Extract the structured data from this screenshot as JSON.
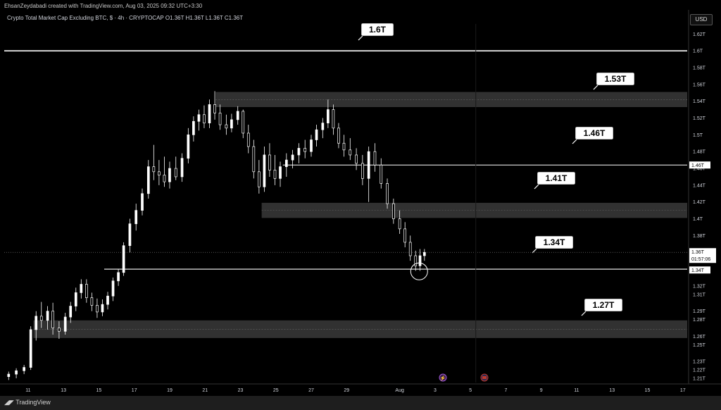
{
  "header": {
    "credit": "EhsanZeydabadi created with TradingView.com, Aug 03, 2025 09:32 UTC+3:30",
    "symbol_line": "Crypto Total Market Cap Excluding BTC, $ · 4h · CRYPTOCAP  O1.36T  H1.36T  L1.36T  C1.36T",
    "currency": "USD"
  },
  "footer": {
    "brand": "TradingView"
  },
  "colors": {
    "background": "#000000",
    "line": "#ffffff",
    "zone": "#3a3a3a",
    "axis_text": "#d1d4dc"
  },
  "chart_data": {
    "type": "candlestick",
    "title": "Crypto Total Market Cap Excluding BTC",
    "timeframe": "4h",
    "y_unit": "T",
    "ylim": [
      1.205,
      1.632
    ],
    "y_ticks": [
      "1.62T",
      "1.6T",
      "1.58T",
      "1.56T",
      "1.54T",
      "1.52T",
      "1.5T",
      "1.48T",
      "1.46T",
      "1.44T",
      "1.42T",
      "1.4T",
      "1.38T",
      "1.36T",
      "1.34T",
      "1.32T",
      "1.31T",
      "1.29T",
      "1.28T",
      "1.26T",
      "1.25T",
      "1.23T",
      "1.22T",
      "1.21T"
    ],
    "y_tick_values": [
      1.62,
      1.6,
      1.58,
      1.56,
      1.54,
      1.52,
      1.5,
      1.48,
      1.46,
      1.44,
      1.42,
      1.4,
      1.38,
      1.36,
      1.34,
      1.32,
      1.31,
      1.29,
      1.28,
      1.26,
      1.25,
      1.23,
      1.22,
      1.21
    ],
    "x_ticks": [
      "11",
      "13",
      "15",
      "17",
      "19",
      "21",
      "23",
      "25",
      "27",
      "29",
      "Aug",
      "3",
      "5",
      "7",
      "9",
      "11",
      "13",
      "15",
      "17"
    ],
    "x_tick_days": [
      11,
      13,
      15,
      17,
      19,
      21,
      23,
      25,
      27,
      29,
      32,
      34,
      36,
      38,
      40,
      42,
      44,
      46,
      48
    ],
    "x_range_days": [
      9.65,
      48.25
    ],
    "ohlc": [
      [
        9.9,
        1.212,
        1.218,
        1.208,
        1.215
      ],
      [
        10.33,
        1.215,
        1.222,
        1.21,
        1.219
      ],
      [
        10.77,
        1.219,
        1.226,
        1.215,
        1.223
      ],
      [
        11.15,
        1.223,
        1.272,
        1.22,
        1.268
      ],
      [
        11.45,
        1.268,
        1.29,
        1.255,
        1.284
      ],
      [
        11.75,
        1.284,
        1.301,
        1.27,
        1.279
      ],
      [
        12.1,
        1.279,
        1.296,
        1.268,
        1.29
      ],
      [
        12.4,
        1.29,
        1.3,
        1.262,
        1.27
      ],
      [
        12.75,
        1.27,
        1.278,
        1.257,
        1.266
      ],
      [
        13.1,
        1.266,
        1.288,
        1.262,
        1.283
      ],
      [
        13.4,
        1.283,
        1.301,
        1.276,
        1.296
      ],
      [
        13.7,
        1.296,
        1.318,
        1.29,
        1.312
      ],
      [
        14.0,
        1.312,
        1.328,
        1.305,
        1.322
      ],
      [
        14.3,
        1.322,
        1.328,
        1.3,
        1.306
      ],
      [
        14.6,
        1.306,
        1.312,
        1.29,
        1.297
      ],
      [
        14.9,
        1.297,
        1.305,
        1.282,
        1.289
      ],
      [
        15.2,
        1.289,
        1.304,
        1.284,
        1.298
      ],
      [
        15.5,
        1.298,
        1.313,
        1.292,
        1.308
      ],
      [
        15.8,
        1.308,
        1.33,
        1.302,
        1.326
      ],
      [
        16.1,
        1.326,
        1.34,
        1.32,
        1.336
      ],
      [
        16.4,
        1.336,
        1.372,
        1.332,
        1.368
      ],
      [
        16.75,
        1.368,
        1.4,
        1.36,
        1.394
      ],
      [
        17.1,
        1.394,
        1.418,
        1.386,
        1.41
      ],
      [
        17.45,
        1.41,
        1.436,
        1.404,
        1.43
      ],
      [
        17.8,
        1.43,
        1.47,
        1.424,
        1.462
      ],
      [
        18.1,
        1.462,
        1.488,
        1.446,
        1.456
      ],
      [
        18.4,
        1.456,
        1.47,
        1.44,
        1.452
      ],
      [
        18.7,
        1.452,
        1.474,
        1.438,
        1.444
      ],
      [
        19.0,
        1.444,
        1.468,
        1.436,
        1.46
      ],
      [
        19.35,
        1.46,
        1.474,
        1.446,
        1.45
      ],
      [
        19.7,
        1.45,
        1.478,
        1.444,
        1.472
      ],
      [
        20.05,
        1.472,
        1.508,
        1.466,
        1.5
      ],
      [
        20.35,
        1.5,
        1.522,
        1.492,
        1.516
      ],
      [
        20.65,
        1.516,
        1.53,
        1.505,
        1.524
      ],
      [
        20.95,
        1.524,
        1.535,
        1.508,
        1.514
      ],
      [
        21.25,
        1.514,
        1.542,
        1.508,
        1.536
      ],
      [
        21.55,
        1.536,
        1.552,
        1.518,
        1.526
      ],
      [
        21.85,
        1.526,
        1.536,
        1.506,
        1.512
      ],
      [
        22.2,
        1.512,
        1.524,
        1.5,
        1.508
      ],
      [
        22.5,
        1.508,
        1.525,
        1.503,
        1.518
      ],
      [
        22.85,
        1.518,
        1.534,
        1.512,
        1.528
      ],
      [
        23.15,
        1.528,
        1.53,
        1.496,
        1.502
      ],
      [
        23.45,
        1.502,
        1.512,
        1.478,
        1.486
      ],
      [
        23.75,
        1.486,
        1.494,
        1.448,
        1.456
      ],
      [
        24.05,
        1.456,
        1.47,
        1.43,
        1.438
      ],
      [
        24.35,
        1.438,
        1.486,
        1.432,
        1.476
      ],
      [
        24.65,
        1.476,
        1.49,
        1.45,
        1.458
      ],
      [
        24.95,
        1.458,
        1.476,
        1.44,
        1.448
      ],
      [
        25.25,
        1.448,
        1.468,
        1.438,
        1.462
      ],
      [
        25.6,
        1.462,
        1.478,
        1.45,
        1.47
      ],
      [
        25.95,
        1.47,
        1.482,
        1.46,
        1.476
      ],
      [
        26.3,
        1.476,
        1.49,
        1.466,
        1.484
      ],
      [
        26.65,
        1.484,
        1.494,
        1.472,
        1.48
      ],
      [
        27.0,
        1.48,
        1.5,
        1.474,
        1.494
      ],
      [
        27.3,
        1.494,
        1.512,
        1.486,
        1.506
      ],
      [
        27.65,
        1.506,
        1.52,
        1.496,
        1.514
      ],
      [
        27.95,
        1.514,
        1.542,
        1.508,
        1.53
      ],
      [
        28.25,
        1.53,
        1.536,
        1.5,
        1.508
      ],
      [
        28.55,
        1.508,
        1.514,
        1.484,
        1.49
      ],
      [
        28.85,
        1.49,
        1.5,
        1.474,
        1.482
      ],
      [
        29.2,
        1.482,
        1.496,
        1.47,
        1.476
      ],
      [
        29.55,
        1.476,
        1.484,
        1.458,
        1.466
      ],
      [
        29.9,
        1.466,
        1.476,
        1.44,
        1.448
      ],
      [
        30.25,
        1.448,
        1.486,
        1.42,
        1.48
      ],
      [
        30.6,
        1.48,
        1.49,
        1.456,
        1.464
      ],
      [
        30.95,
        1.464,
        1.472,
        1.436,
        1.442
      ],
      [
        31.3,
        1.442,
        1.448,
        1.412,
        1.418
      ],
      [
        31.65,
        1.418,
        1.424,
        1.394,
        1.4
      ],
      [
        32.0,
        1.4,
        1.41,
        1.382,
        1.388
      ],
      [
        32.3,
        1.388,
        1.396,
        1.366,
        1.372
      ],
      [
        32.6,
        1.372,
        1.38,
        1.35,
        1.356
      ],
      [
        32.9,
        1.356,
        1.362,
        1.338,
        1.344
      ],
      [
        33.15,
        1.344,
        1.364,
        1.338,
        1.356
      ],
      [
        33.4,
        1.356,
        1.364,
        1.35,
        1.36
      ]
    ],
    "levels": [
      {
        "label": "1.6T",
        "type": "line",
        "value": 1.6
      },
      {
        "label": "1.53T",
        "type": "zone",
        "from": 1.533,
        "to": 1.551
      },
      {
        "label": "1.46T",
        "type": "line",
        "value": 1.464
      },
      {
        "label": "1.41T",
        "type": "zone",
        "from": 1.401,
        "to": 1.419
      },
      {
        "label": "1.34T",
        "type": "line",
        "value": 1.34
      },
      {
        "label": "1.27T",
        "type": "zone",
        "from": 1.258,
        "to": 1.279
      }
    ],
    "current_price": {
      "label": "1.36T",
      "countdown": "01:57:06",
      "value": 1.36
    },
    "level_price_labels": [
      {
        "label": "1.46T",
        "value": 1.464
      },
      {
        "label": "1.34T",
        "value": 1.339
      }
    ],
    "highlight": {
      "shape": "circle",
      "x_day": 33.1,
      "value": 1.339
    },
    "grid": false,
    "legend": "none"
  }
}
